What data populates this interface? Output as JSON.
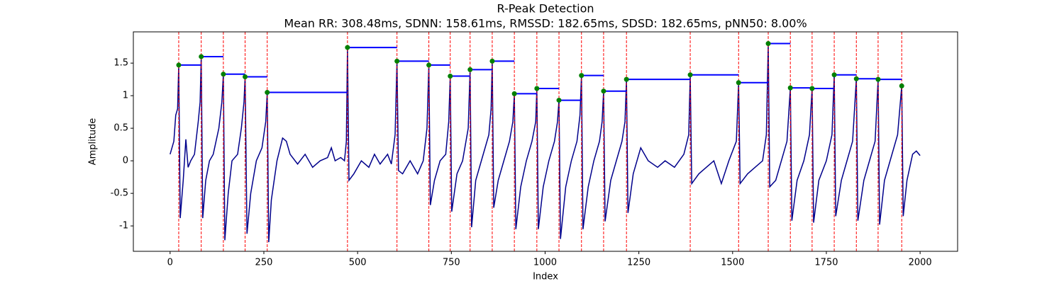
{
  "chart_data": {
    "type": "line",
    "title": "R-Peak Detection",
    "subtitle": "Mean RR: 308.48ms, SDNN: 158.61ms, RMSSD: 182.65ms, SDSD: 182.65ms, pNN50: 8.00%",
    "xlabel": "Index",
    "ylabel": "Amplitude",
    "xlim": [
      -98,
      2100
    ],
    "ylim": [
      -1.39,
      1.98
    ],
    "xticks": [
      0,
      250,
      500,
      750,
      1000,
      1250,
      1500,
      1750,
      2000
    ],
    "yticks": [
      -1.0,
      -0.5,
      0.0,
      0.5,
      1.0,
      1.5
    ],
    "series": [
      {
        "color": "#00008b",
        "x": [
          0,
          10,
          15,
          20,
          23,
          27,
          35,
          42,
          48,
          55,
          65,
          75,
          80,
          83,
          87,
          95,
          105,
          115,
          130,
          138,
          142,
          146,
          155,
          165,
          180,
          190,
          197,
          200,
          205,
          215,
          230,
          245,
          255,
          259,
          263,
          270,
          285,
          300,
          310,
          320,
          340,
          360,
          380,
          400,
          420,
          430,
          440,
          455,
          465,
          470,
          473,
          477,
          490,
          510,
          530,
          545,
          560,
          580,
          590,
          600,
          605,
          609,
          620,
          640,
          660,
          675,
          685,
          690,
          694,
          705,
          720,
          735,
          743,
          747,
          751,
          765,
          780,
          795,
          800,
          804,
          815,
          830,
          850,
          856,
          859,
          863,
          875,
          890,
          905,
          914,
          918,
          922,
          935,
          950,
          965,
          975,
          978,
          982,
          995,
          1010,
          1025,
          1033,
          1037,
          1041,
          1055,
          1070,
          1085,
          1093,
          1097,
          1101,
          1115,
          1130,
          1145,
          1152,
          1156,
          1160,
          1175,
          1190,
          1205,
          1213,
          1217,
          1221,
          1235,
          1255,
          1275,
          1300,
          1320,
          1345,
          1370,
          1383,
          1387,
          1391,
          1410,
          1430,
          1450,
          1470,
          1490,
          1510,
          1516,
          1520,
          1540,
          1560,
          1580,
          1590,
          1595,
          1599,
          1615,
          1630,
          1645,
          1654,
          1658,
          1672,
          1690,
          1705,
          1712,
          1716,
          1730,
          1750,
          1765,
          1771,
          1775,
          1790,
          1805,
          1820,
          1830,
          1834,
          1850,
          1865,
          1880,
          1888,
          1892,
          1905,
          1920,
          1940,
          1951,
          1955,
          1965,
          1980,
          1990,
          2000
        ],
        "values": [
          0.1,
          0.3,
          0.7,
          0.8,
          1.47,
          -0.88,
          -0.3,
          0.33,
          -0.1,
          0.0,
          0.1,
          0.6,
          0.9,
          1.6,
          -0.88,
          -0.3,
          0.0,
          0.1,
          0.5,
          0.9,
          1.33,
          -1.22,
          -0.5,
          0.0,
          0.1,
          0.5,
          0.9,
          1.29,
          -1.12,
          -0.5,
          0.0,
          0.2,
          0.6,
          1.05,
          -1.25,
          -0.6,
          0.0,
          0.35,
          0.3,
          0.1,
          -0.05,
          0.1,
          -0.1,
          0.0,
          0.05,
          0.2,
          0.0,
          0.05,
          0.0,
          0.3,
          1.74,
          -0.3,
          -0.2,
          0.0,
          -0.1,
          0.1,
          -0.05,
          0.1,
          -0.05,
          0.4,
          1.53,
          -0.15,
          -0.2,
          0.0,
          -0.2,
          0.0,
          0.5,
          1.47,
          -0.68,
          -0.3,
          0.0,
          0.1,
          0.6,
          1.3,
          -0.78,
          -0.2,
          0.0,
          0.5,
          1.4,
          -1.02,
          -0.3,
          0.0,
          0.4,
          0.8,
          1.53,
          -0.72,
          -0.3,
          0.0,
          0.3,
          0.6,
          1.03,
          -1.05,
          -0.4,
          0.0,
          0.3,
          0.6,
          1.11,
          -1.05,
          -0.4,
          0.0,
          0.3,
          0.6,
          0.93,
          -1.2,
          -0.4,
          0.0,
          0.3,
          0.7,
          1.31,
          -1.05,
          -0.4,
          0.0,
          0.3,
          0.6,
          1.07,
          -0.93,
          -0.3,
          0.0,
          0.3,
          0.6,
          1.25,
          -0.8,
          -0.2,
          0.2,
          0.0,
          -0.1,
          0.0,
          -0.1,
          0.1,
          0.4,
          1.32,
          -0.35,
          -0.2,
          -0.1,
          0.0,
          -0.35,
          0.0,
          0.3,
          1.2,
          -0.35,
          -0.2,
          -0.1,
          0.0,
          0.4,
          1.8,
          -0.4,
          -0.3,
          0.0,
          0.3,
          1.12,
          -0.92,
          -0.3,
          0.0,
          0.4,
          1.11,
          -0.95,
          -0.3,
          0.0,
          0.4,
          1.32,
          -0.85,
          -0.3,
          0.0,
          0.3,
          1.26,
          -0.92,
          -0.3,
          0.0,
          0.3,
          1.25,
          -0.98,
          -0.3,
          0.0,
          0.4,
          1.15,
          -0.85,
          -0.3,
          0.1,
          0.15,
          0.08
        ]
      },
      {
        "color": "#008000",
        "peak_line_color": "#ff0000",
        "interval_color": "#0000ff",
        "x": [
          23,
          83,
          142,
          200,
          259,
          473,
          605,
          690,
          747,
          800,
          859,
          918,
          978,
          1037,
          1097,
          1156,
          1217,
          1387,
          1516,
          1595,
          1654,
          1712,
          1771,
          1830,
          1888,
          1951
        ],
        "values": [
          1.47,
          1.6,
          1.33,
          1.29,
          1.05,
          1.74,
          1.53,
          1.47,
          1.3,
          1.4,
          1.53,
          1.03,
          1.11,
          0.93,
          1.31,
          1.07,
          1.25,
          1.32,
          1.2,
          1.8,
          1.12,
          1.11,
          1.32,
          1.26,
          1.25,
          1.15
        ]
      }
    ]
  }
}
